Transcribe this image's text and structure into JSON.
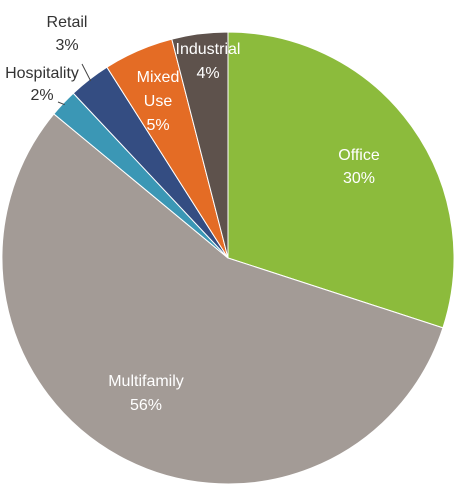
{
  "chart_data": {
    "type": "pie",
    "title": "",
    "slices": [
      {
        "label": "Office",
        "value": 30,
        "value_label": "30%",
        "color": "#8cbb3c",
        "label_color": "#ffffff"
      },
      {
        "label": "Multifamily",
        "value": 56,
        "value_label": "56%",
        "color": "#a39b96",
        "label_color": "#ffffff"
      },
      {
        "label": "Hospitality",
        "value": 2,
        "value_label": "2%",
        "color": "#3b97b5",
        "label_color": "#333333"
      },
      {
        "label": "Retail",
        "value": 3,
        "value_label": "3%",
        "color": "#344d82",
        "label_color": "#333333"
      },
      {
        "label": "Mixed Use",
        "value": 5,
        "value_label": "5%",
        "color": "#e46c25",
        "label_color": "#ffffff"
      },
      {
        "label": "Industrial",
        "value": 4,
        "value_label": "4%",
        "color": "#5e524c",
        "label_color": "#ffffff"
      }
    ],
    "start_angle_deg": 0,
    "direction": "clockwise",
    "legend": "none"
  }
}
